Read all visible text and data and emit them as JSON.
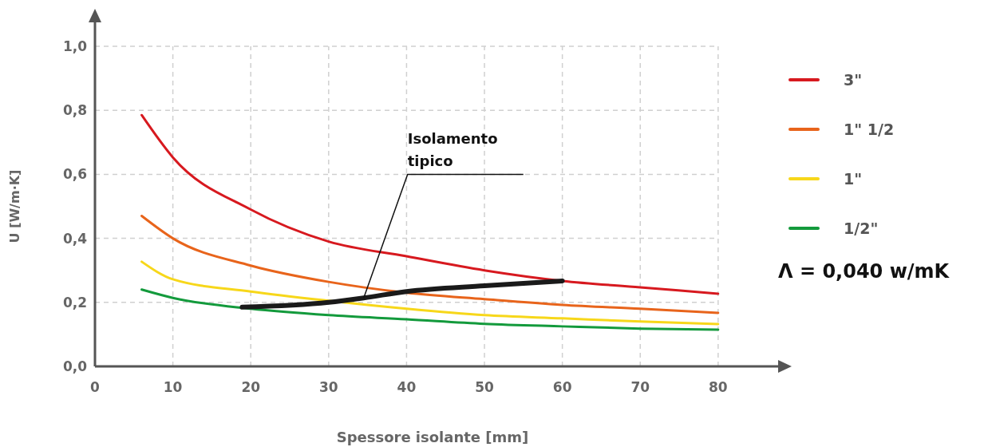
{
  "chart_data": {
    "type": "line",
    "xlabel": "Spessore isolante [mm]",
    "ylabel": "U [W/m·K]",
    "x": [
      6,
      10,
      20,
      30,
      40,
      50,
      60,
      70,
      80
    ],
    "series": [
      {
        "name": "3\"",
        "color": "#d7191f",
        "values": [
          0.785,
          0.653,
          0.49,
          0.39,
          0.344,
          0.3,
          0.267,
          0.247,
          0.227
        ]
      },
      {
        "name": "1\" 1/2",
        "color": "#e8641b",
        "values": [
          0.47,
          0.4,
          0.315,
          0.264,
          0.23,
          0.21,
          0.192,
          0.18,
          0.167
        ]
      },
      {
        "name": "1\"",
        "color": "#f7d71a",
        "values": [
          0.327,
          0.272,
          0.234,
          0.205,
          0.18,
          0.16,
          0.15,
          0.14,
          0.132
        ]
      },
      {
        "name": "1/2\"",
        "color": "#139a3c",
        "values": [
          0.24,
          0.214,
          0.18,
          0.16,
          0.147,
          0.133,
          0.125,
          0.118,
          0.115
        ]
      },
      {
        "color": "#1a1a1a",
        "x": [
          18.9,
          30,
          34.5,
          40,
          50,
          60
        ],
        "values": [
          0.185,
          0.2,
          0.214,
          0.234,
          0.252,
          0.267
        ]
      }
    ],
    "xlim": [
      0,
      87.7
    ],
    "xticks": [
      0,
      10,
      20,
      30,
      40,
      50,
      60,
      70,
      80
    ],
    "ylim": [
      0,
      1
    ],
    "yticks": [
      {
        "value": 0,
        "label": "0,0"
      },
      {
        "value": 0.2,
        "label": "0,2"
      },
      {
        "value": 0.4,
        "label": "0,4"
      },
      {
        "value": 0.6,
        "label": "0,6"
      },
      {
        "value": 0.8,
        "label": "0,8"
      },
      {
        "value": 1,
        "label": "1,0"
      }
    ],
    "grid": true,
    "legend": "right",
    "marker": "none",
    "line_style": "solid",
    "annotations": [
      {
        "text": "Isolamento tipico",
        "x": 34.5,
        "y": 0.214
      },
      "Λ = 0,040 w/mK"
    ]
  }
}
